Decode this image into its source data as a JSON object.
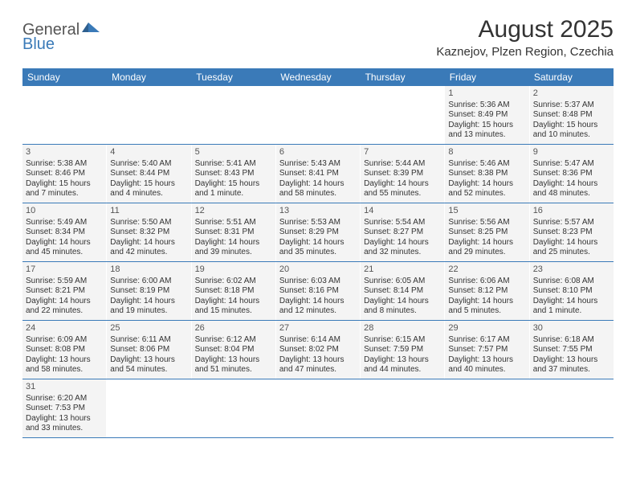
{
  "logo": {
    "general": "General",
    "blue": "Blue"
  },
  "title": "August 2025",
  "location": "Kaznejov, Plzen Region, Czechia",
  "weekdays": [
    "Sunday",
    "Monday",
    "Tuesday",
    "Wednesday",
    "Thursday",
    "Friday",
    "Saturday"
  ],
  "colors": {
    "header_bg": "#3a7ab8",
    "cell_bg": "#f4f4f4",
    "row_border": "#3a7ab8",
    "logo_gray": "#555555",
    "logo_blue": "#3a7ab8"
  },
  "weeks": [
    [
      null,
      null,
      null,
      null,
      null,
      {
        "day": "1",
        "sunrise": "Sunrise: 5:36 AM",
        "sunset": "Sunset: 8:49 PM",
        "daylight1": "Daylight: 15 hours",
        "daylight2": "and 13 minutes."
      },
      {
        "day": "2",
        "sunrise": "Sunrise: 5:37 AM",
        "sunset": "Sunset: 8:48 PM",
        "daylight1": "Daylight: 15 hours",
        "daylight2": "and 10 minutes."
      }
    ],
    [
      {
        "day": "3",
        "sunrise": "Sunrise: 5:38 AM",
        "sunset": "Sunset: 8:46 PM",
        "daylight1": "Daylight: 15 hours",
        "daylight2": "and 7 minutes."
      },
      {
        "day": "4",
        "sunrise": "Sunrise: 5:40 AM",
        "sunset": "Sunset: 8:44 PM",
        "daylight1": "Daylight: 15 hours",
        "daylight2": "and 4 minutes."
      },
      {
        "day": "5",
        "sunrise": "Sunrise: 5:41 AM",
        "sunset": "Sunset: 8:43 PM",
        "daylight1": "Daylight: 15 hours",
        "daylight2": "and 1 minute."
      },
      {
        "day": "6",
        "sunrise": "Sunrise: 5:43 AM",
        "sunset": "Sunset: 8:41 PM",
        "daylight1": "Daylight: 14 hours",
        "daylight2": "and 58 minutes."
      },
      {
        "day": "7",
        "sunrise": "Sunrise: 5:44 AM",
        "sunset": "Sunset: 8:39 PM",
        "daylight1": "Daylight: 14 hours",
        "daylight2": "and 55 minutes."
      },
      {
        "day": "8",
        "sunrise": "Sunrise: 5:46 AM",
        "sunset": "Sunset: 8:38 PM",
        "daylight1": "Daylight: 14 hours",
        "daylight2": "and 52 minutes."
      },
      {
        "day": "9",
        "sunrise": "Sunrise: 5:47 AM",
        "sunset": "Sunset: 8:36 PM",
        "daylight1": "Daylight: 14 hours",
        "daylight2": "and 48 minutes."
      }
    ],
    [
      {
        "day": "10",
        "sunrise": "Sunrise: 5:49 AM",
        "sunset": "Sunset: 8:34 PM",
        "daylight1": "Daylight: 14 hours",
        "daylight2": "and 45 minutes."
      },
      {
        "day": "11",
        "sunrise": "Sunrise: 5:50 AM",
        "sunset": "Sunset: 8:32 PM",
        "daylight1": "Daylight: 14 hours",
        "daylight2": "and 42 minutes."
      },
      {
        "day": "12",
        "sunrise": "Sunrise: 5:51 AM",
        "sunset": "Sunset: 8:31 PM",
        "daylight1": "Daylight: 14 hours",
        "daylight2": "and 39 minutes."
      },
      {
        "day": "13",
        "sunrise": "Sunrise: 5:53 AM",
        "sunset": "Sunset: 8:29 PM",
        "daylight1": "Daylight: 14 hours",
        "daylight2": "and 35 minutes."
      },
      {
        "day": "14",
        "sunrise": "Sunrise: 5:54 AM",
        "sunset": "Sunset: 8:27 PM",
        "daylight1": "Daylight: 14 hours",
        "daylight2": "and 32 minutes."
      },
      {
        "day": "15",
        "sunrise": "Sunrise: 5:56 AM",
        "sunset": "Sunset: 8:25 PM",
        "daylight1": "Daylight: 14 hours",
        "daylight2": "and 29 minutes."
      },
      {
        "day": "16",
        "sunrise": "Sunrise: 5:57 AM",
        "sunset": "Sunset: 8:23 PM",
        "daylight1": "Daylight: 14 hours",
        "daylight2": "and 25 minutes."
      }
    ],
    [
      {
        "day": "17",
        "sunrise": "Sunrise: 5:59 AM",
        "sunset": "Sunset: 8:21 PM",
        "daylight1": "Daylight: 14 hours",
        "daylight2": "and 22 minutes."
      },
      {
        "day": "18",
        "sunrise": "Sunrise: 6:00 AM",
        "sunset": "Sunset: 8:19 PM",
        "daylight1": "Daylight: 14 hours",
        "daylight2": "and 19 minutes."
      },
      {
        "day": "19",
        "sunrise": "Sunrise: 6:02 AM",
        "sunset": "Sunset: 8:18 PM",
        "daylight1": "Daylight: 14 hours",
        "daylight2": "and 15 minutes."
      },
      {
        "day": "20",
        "sunrise": "Sunrise: 6:03 AM",
        "sunset": "Sunset: 8:16 PM",
        "daylight1": "Daylight: 14 hours",
        "daylight2": "and 12 minutes."
      },
      {
        "day": "21",
        "sunrise": "Sunrise: 6:05 AM",
        "sunset": "Sunset: 8:14 PM",
        "daylight1": "Daylight: 14 hours",
        "daylight2": "and 8 minutes."
      },
      {
        "day": "22",
        "sunrise": "Sunrise: 6:06 AM",
        "sunset": "Sunset: 8:12 PM",
        "daylight1": "Daylight: 14 hours",
        "daylight2": "and 5 minutes."
      },
      {
        "day": "23",
        "sunrise": "Sunrise: 6:08 AM",
        "sunset": "Sunset: 8:10 PM",
        "daylight1": "Daylight: 14 hours",
        "daylight2": "and 1 minute."
      }
    ],
    [
      {
        "day": "24",
        "sunrise": "Sunrise: 6:09 AM",
        "sunset": "Sunset: 8:08 PM",
        "daylight1": "Daylight: 13 hours",
        "daylight2": "and 58 minutes."
      },
      {
        "day": "25",
        "sunrise": "Sunrise: 6:11 AM",
        "sunset": "Sunset: 8:06 PM",
        "daylight1": "Daylight: 13 hours",
        "daylight2": "and 54 minutes."
      },
      {
        "day": "26",
        "sunrise": "Sunrise: 6:12 AM",
        "sunset": "Sunset: 8:04 PM",
        "daylight1": "Daylight: 13 hours",
        "daylight2": "and 51 minutes."
      },
      {
        "day": "27",
        "sunrise": "Sunrise: 6:14 AM",
        "sunset": "Sunset: 8:02 PM",
        "daylight1": "Daylight: 13 hours",
        "daylight2": "and 47 minutes."
      },
      {
        "day": "28",
        "sunrise": "Sunrise: 6:15 AM",
        "sunset": "Sunset: 7:59 PM",
        "daylight1": "Daylight: 13 hours",
        "daylight2": "and 44 minutes."
      },
      {
        "day": "29",
        "sunrise": "Sunrise: 6:17 AM",
        "sunset": "Sunset: 7:57 PM",
        "daylight1": "Daylight: 13 hours",
        "daylight2": "and 40 minutes."
      },
      {
        "day": "30",
        "sunrise": "Sunrise: 6:18 AM",
        "sunset": "Sunset: 7:55 PM",
        "daylight1": "Daylight: 13 hours",
        "daylight2": "and 37 minutes."
      }
    ],
    [
      {
        "day": "31",
        "sunrise": "Sunrise: 6:20 AM",
        "sunset": "Sunset: 7:53 PM",
        "daylight1": "Daylight: 13 hours",
        "daylight2": "and 33 minutes."
      },
      null,
      null,
      null,
      null,
      null,
      null
    ]
  ]
}
